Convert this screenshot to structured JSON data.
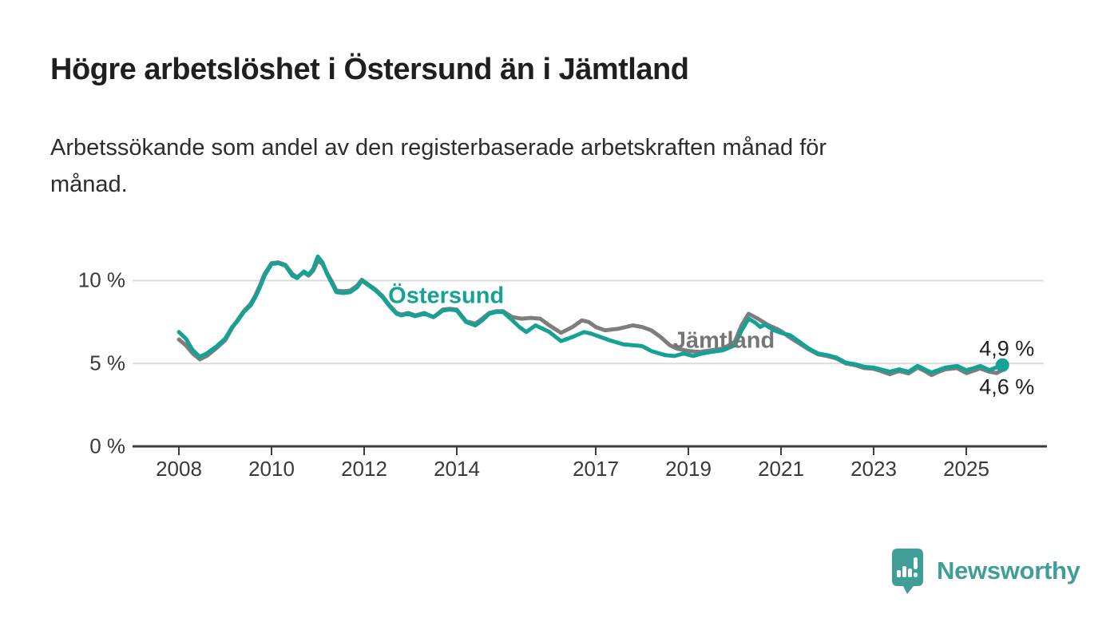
{
  "header": {
    "title": "Högre arbetslöshet i Östersund än i Jämtland",
    "subtitle_lines": [
      "Arbetssökande som andel av den registerbaserade arbetskraften månad för",
      "månad."
    ]
  },
  "footer": {
    "brand_name": "Newsworthy",
    "brand_color": "#3f9f98",
    "logo_icon": "speech-bubble-bar-chart-icon"
  },
  "chart_data": {
    "type": "line",
    "title": "Högre arbetslöshet i Östersund än i Jämtland",
    "subtitle": "Arbetssökande som andel av den registerbaserade arbetskraften månad för månad.",
    "xlabel": "",
    "ylabel": "",
    "grid": "horizontal",
    "legend_position": "inline-labels",
    "xlim": [
      2007.9,
      2026.8
    ],
    "ylim": [
      0,
      12
    ],
    "x_ticks": [
      {
        "label": "2008",
        "year": 2008
      },
      {
        "label": "2010",
        "year": 2010
      },
      {
        "label": "2012",
        "year": 2012
      },
      {
        "label": "2014",
        "year": 2014
      },
      {
        "label": "2017",
        "year": 2017
      },
      {
        "label": "2019",
        "year": 2019
      },
      {
        "label": "2021",
        "year": 2021
      },
      {
        "label": "2023",
        "year": 2023
      },
      {
        "label": "2025",
        "year": 2025
      }
    ],
    "y_ticks": [
      {
        "label": "10 %",
        "value": 10
      },
      {
        "label": "5 %",
        "value": 5
      },
      {
        "label": "0 %",
        "value": 0
      }
    ],
    "end_labels": [
      {
        "text": "4,9 %",
        "year": 2025.28,
        "pct": 5.88
      },
      {
        "text": "4,6 %",
        "year": 2025.28,
        "pct": 3.56
      }
    ],
    "series": [
      {
        "name": "Jämtland",
        "color": "#7d7d7d",
        "final_value_label": "4,6 %",
        "label_anchor": {
          "year": 2018.67,
          "pct": 6.36
        },
        "end_dot": false,
        "points": [
          [
            2008.0,
            6.45
          ],
          [
            2008.15,
            6.1
          ],
          [
            2008.3,
            5.6
          ],
          [
            2008.45,
            5.25
          ],
          [
            2008.6,
            5.45
          ],
          [
            2008.8,
            5.9
          ],
          [
            2009.0,
            6.4
          ],
          [
            2009.15,
            7.15
          ],
          [
            2009.25,
            7.55
          ],
          [
            2009.4,
            8.15
          ],
          [
            2009.55,
            8.6
          ],
          [
            2009.65,
            9.1
          ],
          [
            2009.75,
            9.7
          ],
          [
            2009.85,
            10.4
          ],
          [
            2010.0,
            11.05
          ],
          [
            2010.15,
            11.1
          ],
          [
            2010.3,
            10.95
          ],
          [
            2010.45,
            10.4
          ],
          [
            2010.55,
            10.2
          ],
          [
            2010.7,
            10.5
          ],
          [
            2010.8,
            10.3
          ],
          [
            2010.9,
            10.6
          ],
          [
            2011.0,
            11.2
          ],
          [
            2011.1,
            11.0
          ],
          [
            2011.2,
            10.45
          ],
          [
            2011.3,
            9.95
          ],
          [
            2011.4,
            9.4
          ],
          [
            2011.55,
            9.35
          ],
          [
            2011.7,
            9.4
          ],
          [
            2011.85,
            9.7
          ],
          [
            2011.95,
            10.05
          ],
          [
            2012.1,
            9.75
          ],
          [
            2012.25,
            9.45
          ],
          [
            2012.4,
            9.05
          ],
          [
            2012.55,
            8.5
          ],
          [
            2012.7,
            8.05
          ],
          [
            2012.8,
            7.95
          ],
          [
            2012.95,
            8.05
          ],
          [
            2013.1,
            7.9
          ],
          [
            2013.3,
            8.05
          ],
          [
            2013.5,
            7.8
          ],
          [
            2013.7,
            8.25
          ],
          [
            2013.85,
            8.3
          ],
          [
            2014.0,
            8.25
          ],
          [
            2014.2,
            7.55
          ],
          [
            2014.4,
            7.4
          ],
          [
            2014.55,
            7.7
          ],
          [
            2014.7,
            8.05
          ],
          [
            2014.85,
            8.15
          ],
          [
            2015.0,
            8.15
          ],
          [
            2015.2,
            7.8
          ],
          [
            2015.4,
            7.7
          ],
          [
            2015.6,
            7.75
          ],
          [
            2015.8,
            7.7
          ],
          [
            2016.0,
            7.3
          ],
          [
            2016.25,
            6.85
          ],
          [
            2016.5,
            7.2
          ],
          [
            2016.7,
            7.6
          ],
          [
            2016.85,
            7.5
          ],
          [
            2017.0,
            7.2
          ],
          [
            2017.2,
            7.0
          ],
          [
            2017.5,
            7.1
          ],
          [
            2017.8,
            7.3
          ],
          [
            2018.0,
            7.2
          ],
          [
            2018.2,
            7.0
          ],
          [
            2018.4,
            6.6
          ],
          [
            2018.6,
            6.1
          ],
          [
            2018.75,
            5.9
          ],
          [
            2019.0,
            5.75
          ],
          [
            2019.25,
            5.7
          ],
          [
            2019.5,
            5.8
          ],
          [
            2019.75,
            5.9
          ],
          [
            2020.0,
            6.3
          ],
          [
            2020.15,
            7.3
          ],
          [
            2020.3,
            8.0
          ],
          [
            2020.5,
            7.7
          ],
          [
            2020.7,
            7.35
          ],
          [
            2020.9,
            7.1
          ],
          [
            2021.0,
            6.95
          ],
          [
            2021.2,
            6.55
          ],
          [
            2021.4,
            6.2
          ],
          [
            2021.6,
            5.85
          ],
          [
            2021.8,
            5.55
          ],
          [
            2022.0,
            5.45
          ],
          [
            2022.2,
            5.3
          ],
          [
            2022.4,
            5.0
          ],
          [
            2022.6,
            4.9
          ],
          [
            2022.8,
            4.72
          ],
          [
            2023.0,
            4.68
          ],
          [
            2023.15,
            4.55
          ],
          [
            2023.35,
            4.35
          ],
          [
            2023.55,
            4.55
          ],
          [
            2023.75,
            4.4
          ],
          [
            2023.95,
            4.75
          ],
          [
            2024.1,
            4.55
          ],
          [
            2024.25,
            4.3
          ],
          [
            2024.4,
            4.5
          ],
          [
            2024.55,
            4.65
          ],
          [
            2024.8,
            4.72
          ],
          [
            2025.0,
            4.42
          ],
          [
            2025.15,
            4.55
          ],
          [
            2025.3,
            4.7
          ],
          [
            2025.5,
            4.5
          ],
          [
            2025.65,
            4.42
          ],
          [
            2025.78,
            4.6
          ]
        ]
      },
      {
        "name": "Östersund",
        "color": "#16a195",
        "final_value_label": "4,9 %",
        "label_anchor": {
          "year": 2012.52,
          "pct": 9.06
        },
        "end_dot": true,
        "points": [
          [
            2008.0,
            6.9
          ],
          [
            2008.15,
            6.5
          ],
          [
            2008.3,
            5.8
          ],
          [
            2008.45,
            5.4
          ],
          [
            2008.6,
            5.6
          ],
          [
            2008.8,
            6.0
          ],
          [
            2009.0,
            6.5
          ],
          [
            2009.15,
            7.2
          ],
          [
            2009.25,
            7.5
          ],
          [
            2009.4,
            8.1
          ],
          [
            2009.55,
            8.5
          ],
          [
            2009.65,
            9.0
          ],
          [
            2009.75,
            9.6
          ],
          [
            2009.85,
            10.3
          ],
          [
            2010.0,
            11.0
          ],
          [
            2010.15,
            11.05
          ],
          [
            2010.3,
            10.9
          ],
          [
            2010.45,
            10.3
          ],
          [
            2010.55,
            10.15
          ],
          [
            2010.7,
            10.55
          ],
          [
            2010.8,
            10.35
          ],
          [
            2010.9,
            10.7
          ],
          [
            2011.0,
            11.45
          ],
          [
            2011.1,
            11.1
          ],
          [
            2011.2,
            10.4
          ],
          [
            2011.3,
            9.85
          ],
          [
            2011.4,
            9.3
          ],
          [
            2011.55,
            9.25
          ],
          [
            2011.7,
            9.3
          ],
          [
            2011.85,
            9.6
          ],
          [
            2011.95,
            10.0
          ],
          [
            2012.1,
            9.7
          ],
          [
            2012.25,
            9.4
          ],
          [
            2012.4,
            9.0
          ],
          [
            2012.55,
            8.45
          ],
          [
            2012.7,
            8.0
          ],
          [
            2012.8,
            7.9
          ],
          [
            2012.95,
            8.0
          ],
          [
            2013.1,
            7.85
          ],
          [
            2013.3,
            8.0
          ],
          [
            2013.5,
            7.8
          ],
          [
            2013.7,
            8.2
          ],
          [
            2013.85,
            8.25
          ],
          [
            2014.0,
            8.2
          ],
          [
            2014.2,
            7.5
          ],
          [
            2014.4,
            7.3
          ],
          [
            2014.55,
            7.6
          ],
          [
            2014.7,
            8.0
          ],
          [
            2014.85,
            8.1
          ],
          [
            2015.0,
            8.1
          ],
          [
            2015.2,
            7.6
          ],
          [
            2015.35,
            7.2
          ],
          [
            2015.5,
            6.9
          ],
          [
            2015.7,
            7.3
          ],
          [
            2015.85,
            7.1
          ],
          [
            2016.0,
            6.9
          ],
          [
            2016.25,
            6.35
          ],
          [
            2016.5,
            6.6
          ],
          [
            2016.75,
            6.9
          ],
          [
            2016.9,
            6.8
          ],
          [
            2017.1,
            6.6
          ],
          [
            2017.3,
            6.4
          ],
          [
            2017.6,
            6.15
          ],
          [
            2018.0,
            6.05
          ],
          [
            2018.2,
            5.75
          ],
          [
            2018.5,
            5.5
          ],
          [
            2018.7,
            5.45
          ],
          [
            2018.9,
            5.6
          ],
          [
            2019.1,
            5.45
          ],
          [
            2019.3,
            5.6
          ],
          [
            2019.5,
            5.7
          ],
          [
            2019.75,
            5.8
          ],
          [
            2020.0,
            6.1
          ],
          [
            2020.15,
            7.0
          ],
          [
            2020.3,
            7.7
          ],
          [
            2020.45,
            7.45
          ],
          [
            2020.55,
            7.2
          ],
          [
            2020.65,
            7.35
          ],
          [
            2020.85,
            7.0
          ],
          [
            2021.0,
            6.85
          ],
          [
            2021.2,
            6.7
          ],
          [
            2021.4,
            6.3
          ],
          [
            2021.6,
            5.9
          ],
          [
            2021.8,
            5.6
          ],
          [
            2022.0,
            5.5
          ],
          [
            2022.2,
            5.35
          ],
          [
            2022.4,
            5.05
          ],
          [
            2022.6,
            4.95
          ],
          [
            2022.8,
            4.8
          ],
          [
            2023.0,
            4.75
          ],
          [
            2023.15,
            4.65
          ],
          [
            2023.35,
            4.5
          ],
          [
            2023.55,
            4.65
          ],
          [
            2023.75,
            4.5
          ],
          [
            2023.95,
            4.85
          ],
          [
            2024.1,
            4.65
          ],
          [
            2024.25,
            4.45
          ],
          [
            2024.4,
            4.6
          ],
          [
            2024.55,
            4.75
          ],
          [
            2024.8,
            4.85
          ],
          [
            2025.0,
            4.6
          ],
          [
            2025.15,
            4.7
          ],
          [
            2025.3,
            4.85
          ],
          [
            2025.5,
            4.6
          ],
          [
            2025.78,
            4.9
          ]
        ]
      }
    ]
  }
}
